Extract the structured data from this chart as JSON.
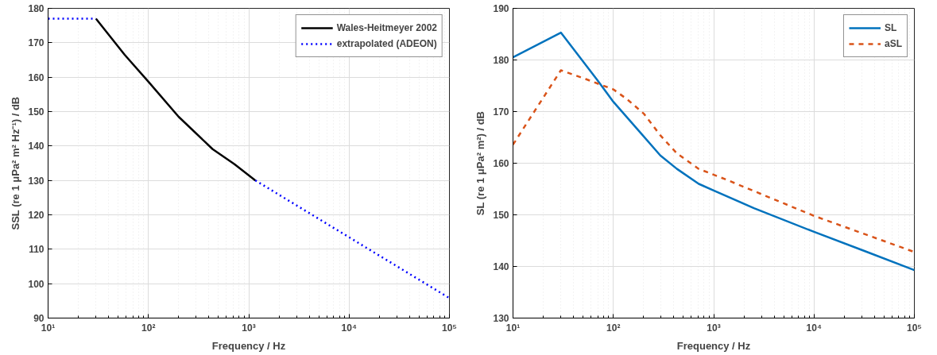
{
  "chart_data": [
    {
      "type": "line",
      "xlabel": "Frequency / Hz",
      "ylabel": "SSL (re 1 μPa² m² Hz⁻¹) / dB",
      "log": "x",
      "grid": true,
      "legend": "top right",
      "xlim": [
        10,
        100000
      ],
      "ylim": [
        90,
        180
      ],
      "xticks": [
        {
          "value": 10,
          "label": "10¹"
        },
        {
          "value": 100,
          "label": "10²"
        },
        {
          "value": 1000,
          "label": "10³"
        },
        {
          "value": 10000,
          "label": "10⁴"
        },
        {
          "value": 100000,
          "label": "10⁵"
        }
      ],
      "yticks": [
        90,
        100,
        110,
        120,
        130,
        140,
        150,
        160,
        170,
        180
      ],
      "series": [
        {
          "name": "Wales-Heitmeyer 2002",
          "color": "#000000",
          "line_style": "solid",
          "x": [
            30,
            58,
            100,
            200,
            436,
            721,
            1164
          ],
          "values": [
            177,
            166.5,
            158.7,
            148.5,
            139.1,
            134.7,
            130
          ]
        },
        {
          "name": "extrapolated (ADEON)",
          "color": "#0000ff",
          "line_style": "dotted",
          "x": [
            10,
            30,
            100,
            1164,
            100000
          ],
          "values": [
            177,
            177,
            null,
            130,
            95.8
          ]
        }
      ]
    },
    {
      "type": "line",
      "xlabel": "Frequency / Hz",
      "ylabel": "SL (re 1 μPa² m²) / dB",
      "log": "x",
      "grid": true,
      "legend": "top right",
      "xlim": [
        10,
        100000
      ],
      "ylim": [
        130,
        190
      ],
      "xticks": [
        {
          "value": 10,
          "label": "10¹"
        },
        {
          "value": 100,
          "label": "10²"
        },
        {
          "value": 1000,
          "label": "10³"
        },
        {
          "value": 10000,
          "label": "10⁴"
        },
        {
          "value": 100000,
          "label": "10⁵"
        }
      ],
      "yticks": [
        130,
        140,
        150,
        160,
        170,
        180,
        190
      ],
      "series": [
        {
          "name": "SL",
          "color": "#0072bd",
          "line_style": "solid",
          "x": [
            10,
            30,
            68,
            100,
            177,
            294,
            430,
            710,
            1000,
            2520,
            10000,
            31800,
            100000
          ],
          "values": [
            180.5,
            185.3,
            176.3,
            171.9,
            166.4,
            161.5,
            158.9,
            156,
            154.7,
            151.3,
            146.7,
            143,
            139.3
          ]
        },
        {
          "name": "aSL",
          "color": "#d95319",
          "line_style": "dashed",
          "x": [
            10,
            30,
            53,
            100,
            137,
            201,
            294,
            430,
            710,
            1343,
            10000,
            100000
          ],
          "values": [
            163.6,
            178,
            176.3,
            174.3,
            172.4,
            169.6,
            165.4,
            161.9,
            158.9,
            156.8,
            149.8,
            142.8
          ]
        }
      ]
    }
  ]
}
